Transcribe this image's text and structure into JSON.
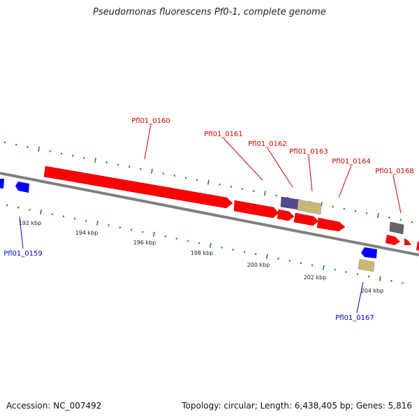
{
  "title": "Pseudomonas fluorescens Pf0-1, complete genome",
  "footer": {
    "accession": "Accession: NC_007492",
    "stats": "Topology: circular; Length: 6,438,405 bp; Genes: 5,816"
  },
  "colors": {
    "forward_gene": "#ff0000",
    "reverse_gene": "#0000ff",
    "rna_gene": "#c8b878",
    "other_gene": "#55488e",
    "pseudo_gene": "#666666",
    "backbone": "#808080",
    "tick": "#228b22",
    "forward_label": "#cc0000",
    "reverse_label": "#0000cc"
  },
  "scale_labels": [
    "192 kbp",
    "194 kbp",
    "196 kbp",
    "198 kbp",
    "200 kbp",
    "202 kbp",
    "204 kbp"
  ],
  "gene_labels": {
    "Pfl01_0159": "Pfl01_0159",
    "Pfl01_0160": "Pfl01_0160",
    "Pfl01_0161": "Pfl01_0161",
    "Pfl01_0162": "Pfl01_0162",
    "Pfl01_0163": "Pfl01_0163",
    "Pfl01_0164": "Pfl01_0164",
    "Pfl01_0167": "Pfl01_0167",
    "Pfl01_0168": "Pfl01_0168"
  }
}
